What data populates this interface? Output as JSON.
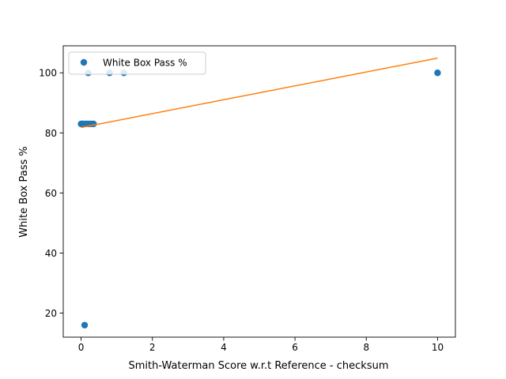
{
  "chart_data": {
    "type": "scatter",
    "title": "",
    "xlabel": "Smith-Waterman Score w.r.t Reference - checksum",
    "ylabel": "White Box Pass %",
    "xlim": [
      -0.5,
      10.5
    ],
    "ylim": [
      12,
      109
    ],
    "xticks": [
      0,
      2,
      4,
      6,
      8,
      10
    ],
    "yticks": [
      20,
      40,
      60,
      80,
      100
    ],
    "grid": false,
    "legend_position": "upper-left",
    "series": [
      {
        "name": "White Box Pass %",
        "kind": "scatter",
        "color": "#1f77b4",
        "x": [
          0.0,
          0.03,
          0.06,
          0.1,
          0.15,
          0.2,
          0.25,
          0.3,
          0.35,
          0.1,
          0.2,
          0.8,
          1.2,
          10.0
        ],
        "y": [
          83,
          83,
          83,
          83,
          83,
          83,
          83,
          83,
          83,
          16,
          100,
          100,
          100,
          100
        ]
      },
      {
        "name": "",
        "kind": "line",
        "color": "#ff7f0e",
        "x": [
          0.0,
          10.0
        ],
        "y": [
          81.8,
          104.9
        ]
      }
    ]
  }
}
